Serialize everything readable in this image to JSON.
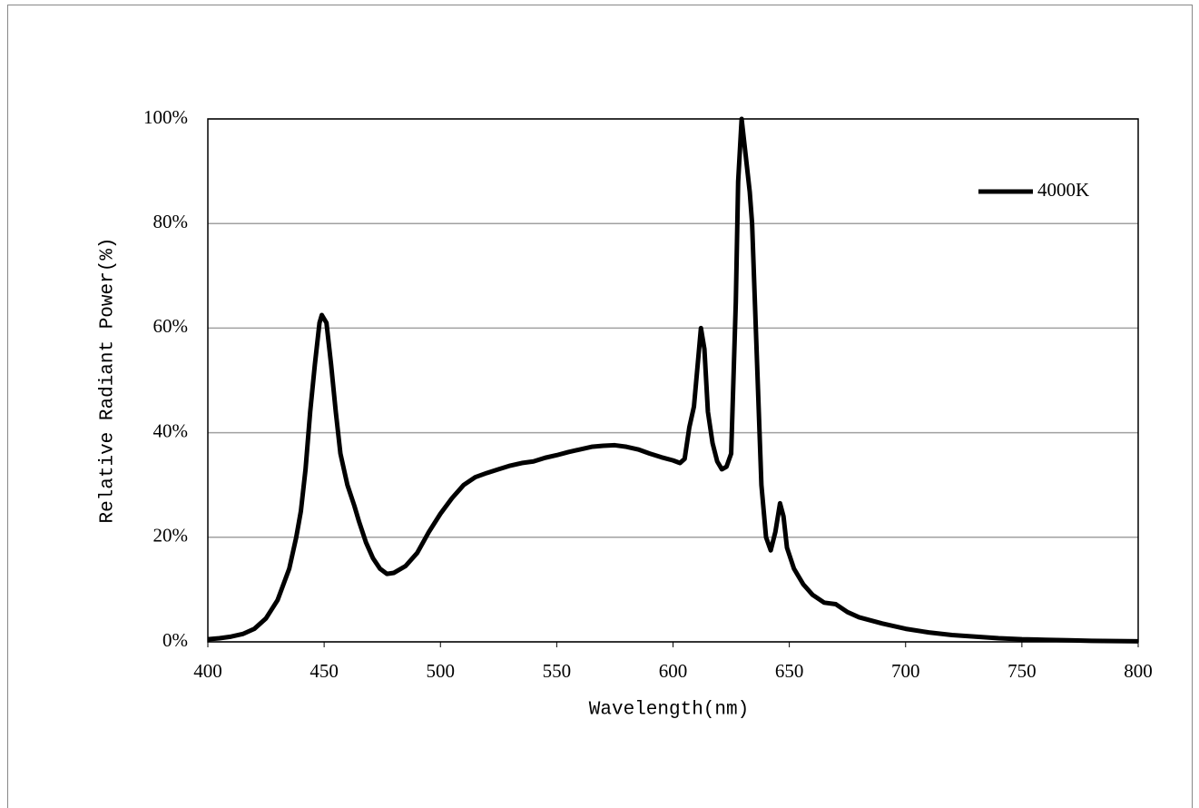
{
  "chart_data": {
    "type": "line",
    "xlabel": "Wavelength(nm)",
    "ylabel": "Relative Radiant Power(%)",
    "xlim": [
      400,
      800
    ],
    "xticks": [
      400,
      450,
      500,
      550,
      600,
      650,
      700,
      750,
      800
    ],
    "ylim": [
      0,
      100
    ],
    "yticks": [
      {
        "value": 0,
        "label": "0%"
      },
      {
        "value": 20,
        "label": "20%"
      },
      {
        "value": 40,
        "label": "40%"
      },
      {
        "value": 60,
        "label": "60%"
      },
      {
        "value": 80,
        "label": "80%"
      },
      {
        "value": 100,
        "label": "100%"
      }
    ],
    "grid": true,
    "legend": "upper right",
    "x": [
      400,
      405,
      410,
      415,
      420,
      425,
      430,
      435,
      438,
      440,
      442,
      444,
      446,
      448,
      449,
      451,
      453,
      455,
      457,
      460,
      463,
      465,
      468,
      471,
      474,
      477,
      480,
      485,
      490,
      495,
      500,
      505,
      510,
      515,
      520,
      525,
      530,
      535,
      540,
      545,
      550,
      555,
      560,
      565,
      570,
      575,
      580,
      585,
      590,
      595,
      600,
      603,
      605,
      607,
      609,
      611,
      612,
      613.5,
      615,
      617,
      619,
      621,
      623,
      625,
      627,
      628,
      629.5,
      631,
      633,
      634,
      636,
      638,
      640,
      642,
      644,
      646,
      647.5,
      649,
      652,
      656,
      660,
      665,
      670,
      675,
      680,
      690,
      700,
      710,
      720,
      730,
      740,
      750,
      760,
      770,
      780,
      790,
      800
    ],
    "series": [
      {
        "name": "4000K",
        "color": "#000000",
        "values": [
          0.5,
          0.7,
          1,
          1.5,
          2.5,
          4.5,
          8,
          14,
          20,
          25,
          33,
          44,
          53,
          61,
          62.5,
          61,
          53,
          44,
          36,
          30,
          26,
          23,
          19,
          16,
          14,
          13,
          13.2,
          14.5,
          17,
          21,
          24.5,
          27.5,
          30,
          31.5,
          32.3,
          33,
          33.7,
          34.2,
          34.5,
          35.2,
          35.7,
          36.3,
          36.8,
          37.3,
          37.5,
          37.6,
          37.3,
          36.8,
          36,
          35.3,
          34.7,
          34.2,
          35,
          41,
          45,
          55,
          60,
          56,
          44,
          38,
          34.5,
          33,
          33.5,
          36,
          65,
          88,
          100,
          94,
          86,
          80,
          55,
          30,
          20,
          17.5,
          21,
          26.5,
          24,
          18,
          14,
          11,
          9,
          7.5,
          7.2,
          5.7,
          4.7,
          3.5,
          2.5,
          1.8,
          1.3,
          1,
          0.7,
          0.5,
          0.4,
          0.3,
          0.2,
          0.15,
          0.1
        ]
      }
    ]
  }
}
